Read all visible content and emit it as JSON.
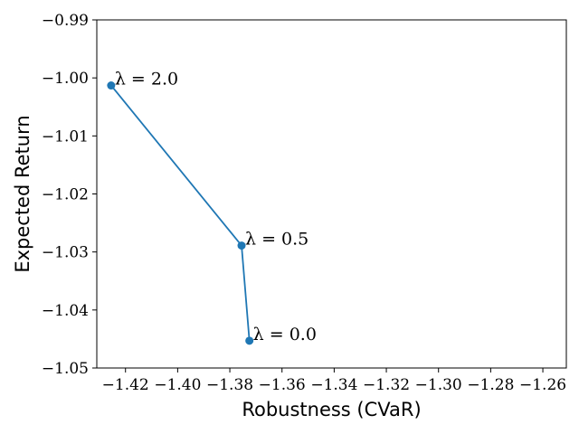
{
  "chart_data": {
    "type": "line",
    "title": "",
    "xlabel": "Robustness (CVaR)",
    "ylabel": "Expected Return",
    "xlim": [
      -1.431,
      -1.251
    ],
    "ylim": [
      -1.05,
      -0.99
    ],
    "xticks": [
      -1.42,
      -1.4,
      -1.38,
      -1.36,
      -1.34,
      -1.32,
      -1.3,
      -1.28,
      -1.26
    ],
    "xtick_labels": [
      "−1.42",
      "−1.40",
      "−1.38",
      "−1.36",
      "−1.34",
      "−1.32",
      "−1.30",
      "−1.28",
      "−1.26"
    ],
    "yticks": [
      -1.05,
      -1.04,
      -1.03,
      -1.02,
      -1.01,
      -1.0,
      -0.99
    ],
    "ytick_labels": [
      "−1.05",
      "−1.04",
      "−1.03",
      "−1.02",
      "−1.01",
      "−1.00",
      "−0.99"
    ],
    "grid": false,
    "color": "#1f77b4",
    "series": [
      {
        "x": [
          -1.4255,
          -1.3755,
          -1.3725
        ],
        "y": [
          -1.0013,
          -1.0289,
          -1.0453
        ],
        "annotations": [
          "λ = 2.0",
          "λ = 0.5",
          "λ = 0.0"
        ]
      }
    ]
  }
}
